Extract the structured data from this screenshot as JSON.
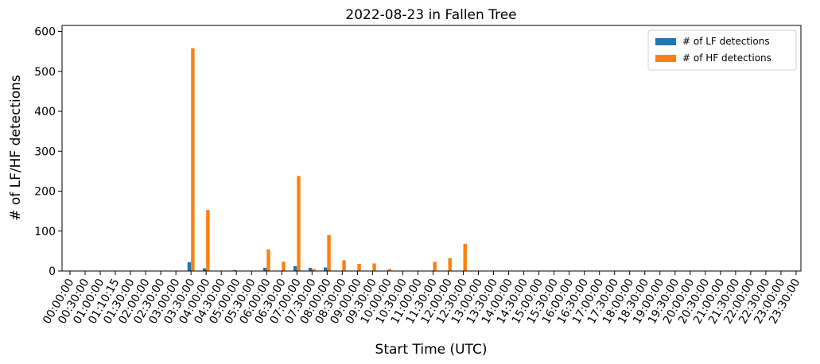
{
  "chart_data": {
    "type": "bar",
    "title": "2022-08-23 in Fallen Tree",
    "xlabel": "Start Time (UTC)",
    "ylabel": "# of LF/HF detections",
    "ylim": [
      0,
      615
    ],
    "yticks": [
      0,
      100,
      200,
      300,
      400,
      500,
      600
    ],
    "grid": false,
    "legend_position": "top-right",
    "categories": [
      "00:00:00",
      "00:30:00",
      "01:00:00",
      "01:10:15",
      "01:30:00",
      "02:00:00",
      "02:30:00",
      "03:00:00",
      "03:30:00",
      "04:00:00",
      "04:30:00",
      "05:00:00",
      "05:30:00",
      "06:00:00",
      "06:30:00",
      "07:00:00",
      "07:30:00",
      "08:00:00",
      "08:30:00",
      "09:00:00",
      "09:30:00",
      "10:00:00",
      "10:30:00",
      "11:00:00",
      "11:30:00",
      "12:00:00",
      "12:30:00",
      "13:00:00",
      "13:30:00",
      "14:00:00",
      "14:30:00",
      "15:00:00",
      "15:30:00",
      "16:00:00",
      "16:30:00",
      "17:00:00",
      "17:30:00",
      "18:00:00",
      "18:30:00",
      "19:00:00",
      "19:30:00",
      "20:00:00",
      "20:30:00",
      "21:00:00",
      "21:30:00",
      "22:00:00",
      "22:30:00",
      "23:00:00",
      "23:30:00"
    ],
    "series": [
      {
        "name": "# of LF detections",
        "color": "#1f77b4",
        "values": [
          0,
          0,
          0,
          0,
          0,
          0,
          0,
          0,
          22,
          7,
          0,
          2,
          0,
          8,
          0,
          12,
          8,
          9,
          0,
          0,
          0,
          0,
          0,
          0,
          0,
          0,
          0,
          0,
          0,
          0,
          0,
          0,
          0,
          0,
          0,
          0,
          0,
          0,
          0,
          0,
          0,
          0,
          0,
          0,
          0,
          0,
          0,
          0,
          0
        ]
      },
      {
        "name": "# of HF detections",
        "color": "#ff7f0e",
        "values": [
          0,
          0,
          0,
          0,
          0,
          0,
          0,
          0,
          558,
          153,
          0,
          0,
          0,
          54,
          23,
          238,
          5,
          90,
          27,
          18,
          19,
          5,
          0,
          0,
          23,
          32,
          68,
          0,
          0,
          0,
          0,
          0,
          0,
          0,
          0,
          0,
          0,
          0,
          0,
          0,
          0,
          0,
          0,
          0,
          0,
          0,
          0,
          0,
          0
        ]
      }
    ]
  }
}
